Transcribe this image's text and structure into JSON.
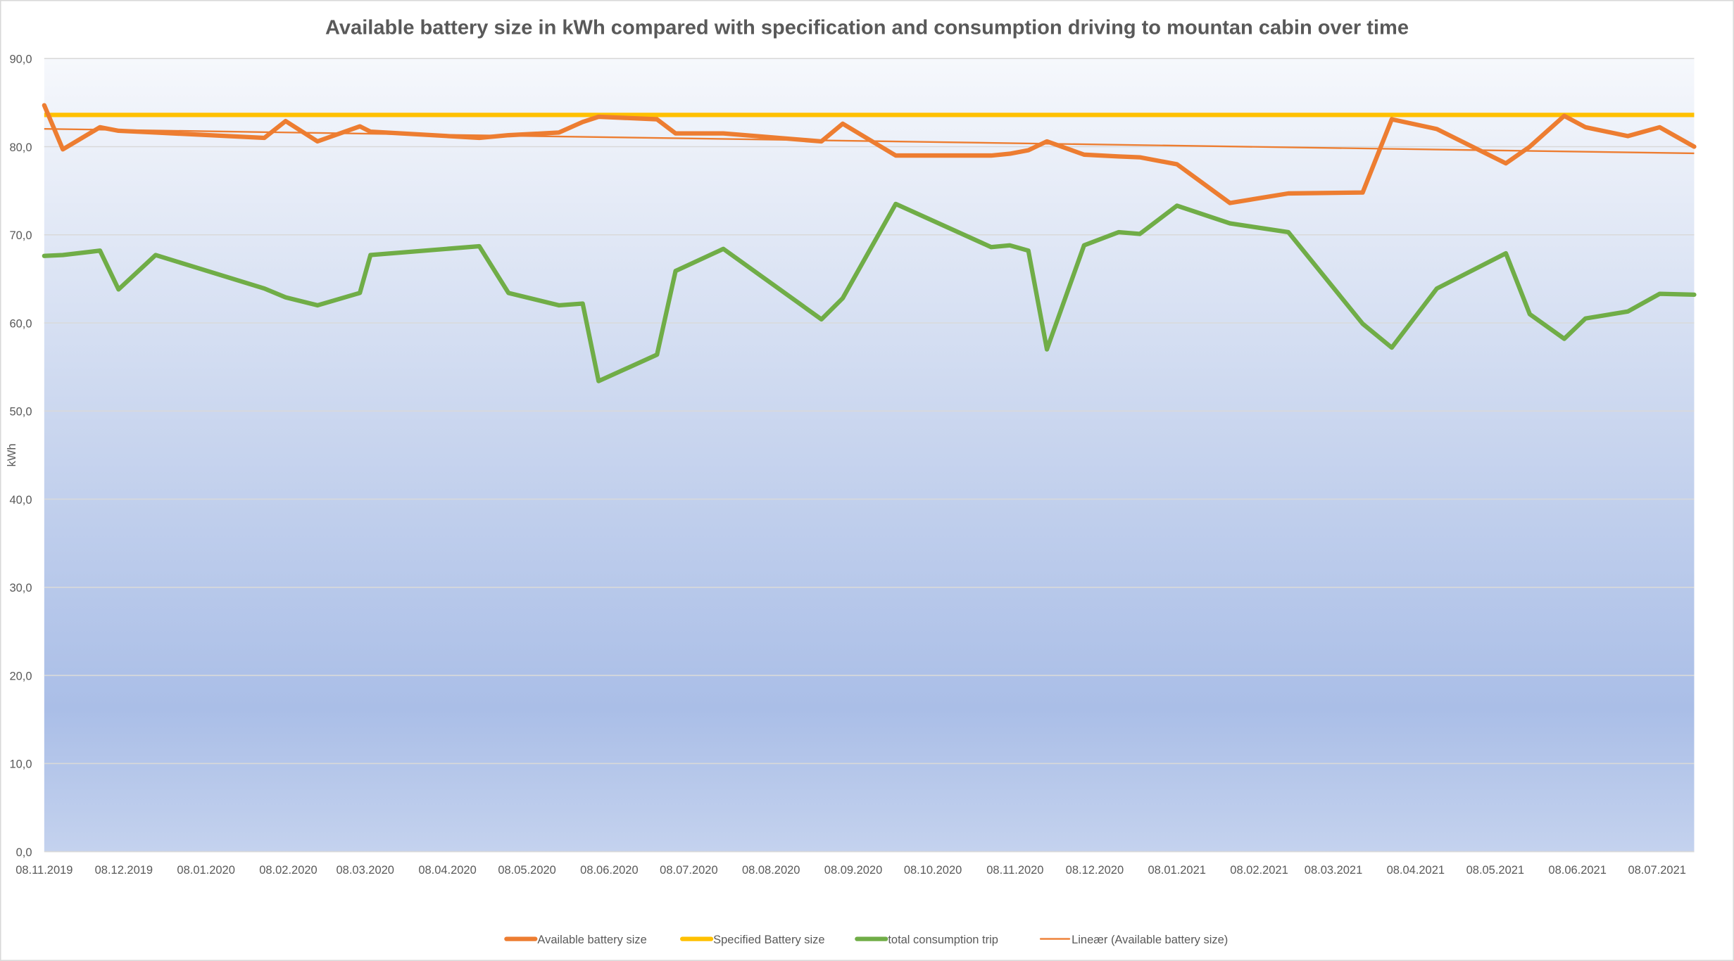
{
  "chart_data": {
    "type": "line",
    "title": "Available battery size in kWh compared with specification and consumption driving to mountan cabin over time",
    "xlabel": "",
    "ylabel": "kWh",
    "ylim": [
      0,
      90
    ],
    "y_ticks": [
      "0,0",
      "10,0",
      "20,0",
      "30,0",
      "40,0",
      "50,0",
      "60,0",
      "70,0",
      "80,0",
      "90,0"
    ],
    "x_range": [
      "08.11.2019",
      "22.07.2021"
    ],
    "x_ticks": [
      "08.11.2019",
      "08.12.2019",
      "08.01.2020",
      "08.02.2020",
      "08.03.2020",
      "08.04.2020",
      "08.05.2020",
      "08.06.2020",
      "08.07.2020",
      "08.08.2020",
      "08.09.2020",
      "08.10.2020",
      "08.11.2020",
      "08.12.2020",
      "08.01.2021",
      "08.02.2021",
      "08.03.2021",
      "08.04.2021",
      "08.05.2021",
      "08.06.2021",
      "08.07.2021"
    ],
    "grid": "horizontal",
    "legend_position": "bottom",
    "x": [
      "08.11.2019",
      "15.11.2019",
      "29.11.2019",
      "06.12.2019",
      "20.12.2019",
      "30.01.2020",
      "07.02.2020",
      "19.02.2020",
      "06.03.2020",
      "10.03.2020",
      "20.04.2020",
      "01.05.2020",
      "20.05.2020",
      "29.05.2020",
      "04.06.2020",
      "26.06.2020",
      "03.07.2020",
      "21.07.2020",
      "27.08.2020",
      "04.09.2020",
      "24.09.2020",
      "30.10.2020",
      "06.11.2020",
      "13.11.2020",
      "20.11.2020",
      "04.12.2020",
      "17.12.2020",
      "25.12.2020",
      "08.01.2021",
      "28.01.2021",
      "19.02.2021",
      "19.03.2021",
      "30.03.2021",
      "16.04.2021",
      "12.05.2021",
      "21.05.2021",
      "03.06.2021",
      "11.06.2021",
      "27.06.2021",
      "09.07.2021",
      "22.07.2021"
    ],
    "series": [
      {
        "name": "Available battery size",
        "color": "#ed7d31",
        "width": 4,
        "values": [
          84.7,
          79.7,
          82.2,
          81.8,
          81.6,
          81.0,
          82.9,
          80.6,
          82.3,
          81.7,
          81.0,
          81.3,
          81.6,
          82.8,
          83.4,
          83.1,
          81.5,
          81.5,
          80.6,
          82.6,
          79.0,
          79.0,
          79.2,
          79.6,
          80.6,
          79.1,
          78.9,
          78.8,
          78.0,
          73.6,
          74.7,
          74.8,
          83.1,
          82.0,
          78.1,
          80.0,
          83.5,
          82.2,
          81.2,
          82.2,
          80.0
        ]
      },
      {
        "name": "Specified Battery size",
        "color": "#ffc000",
        "width": 4,
        "constant": 83.6
      },
      {
        "name": "total consumption trip",
        "color": "#70ad47",
        "width": 4,
        "values": [
          67.6,
          67.7,
          68.2,
          63.8,
          67.7,
          63.9,
          62.9,
          62.0,
          63.4,
          67.7,
          68.7,
          63.4,
          62.0,
          62.2,
          53.4,
          56.4,
          65.9,
          68.4,
          60.4,
          62.8,
          73.5,
          68.6,
          68.8,
          68.2,
          57.0,
          68.8,
          70.3,
          70.1,
          73.3,
          71.3,
          70.3,
          59.9,
          57.2,
          63.9,
          67.9,
          61.0,
          58.2,
          60.5,
          61.3,
          63.3,
          63.2
        ]
      },
      {
        "name": "Lineær (Available battery size)",
        "color": "#ed7d31",
        "width": 1.5,
        "trendline_of": "Available battery size"
      }
    ]
  }
}
